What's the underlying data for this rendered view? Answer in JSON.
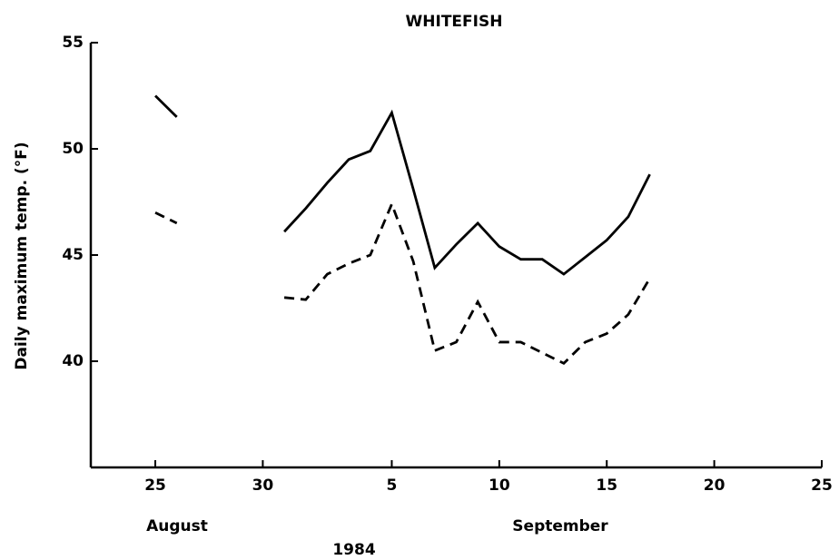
{
  "chart_data": {
    "type": "line",
    "title": "WHITEFISH",
    "ylabel": "Daily maximum temp. (°F)",
    "xlabel": "1984",
    "month_labels": [
      "August",
      "September"
    ],
    "x": [
      "1984-08-25",
      "1984-08-26",
      "1984-08-27",
      "1984-08-28",
      "1984-08-29",
      "1984-08-30",
      "1984-08-31",
      "1984-09-01",
      "1984-09-02",
      "1984-09-03",
      "1984-09-04",
      "1984-09-05",
      "1984-09-06",
      "1984-09-07",
      "1984-09-08",
      "1984-09-09",
      "1984-09-10",
      "1984-09-11",
      "1984-09-12",
      "1984-09-13",
      "1984-09-14",
      "1984-09-15",
      "1984-09-16",
      "1984-09-17"
    ],
    "series": [
      {
        "color": "#000000",
        "style": "solid",
        "values": [
          52.5,
          51.5,
          null,
          null,
          null,
          null,
          46.1,
          47.2,
          48.4,
          49.5,
          49.9,
          51.7,
          48.1,
          44.4,
          45.5,
          46.5,
          45.4,
          44.8,
          44.8,
          44.1,
          44.9,
          45.7,
          46.8,
          48.8
        ]
      },
      {
        "color": "#000000",
        "style": "dashed",
        "values": [
          47.0,
          46.5,
          null,
          null,
          null,
          null,
          43.0,
          42.9,
          44.1,
          44.6,
          45.0,
          47.4,
          44.7,
          40.5,
          40.9,
          42.8,
          40.9,
          40.9,
          40.4,
          39.9,
          40.9,
          41.3,
          42.2,
          43.9
        ]
      }
    ],
    "xlim": [
      "1984-08-22",
      "1984-09-25"
    ],
    "xticks": [
      {
        "value": "1984-08-25",
        "label": "25"
      },
      {
        "value": "1984-08-30",
        "label": "30"
      },
      {
        "value": "1984-09-05",
        "label": "5"
      },
      {
        "value": "1984-09-10",
        "label": "10"
      },
      {
        "value": "1984-09-15",
        "label": "15"
      },
      {
        "value": "1984-09-20",
        "label": "20"
      },
      {
        "value": "1984-09-25",
        "label": "25"
      }
    ],
    "ylim": [
      35,
      55
    ],
    "yticks": [
      40,
      45,
      50,
      55
    ],
    "grid": false
  }
}
